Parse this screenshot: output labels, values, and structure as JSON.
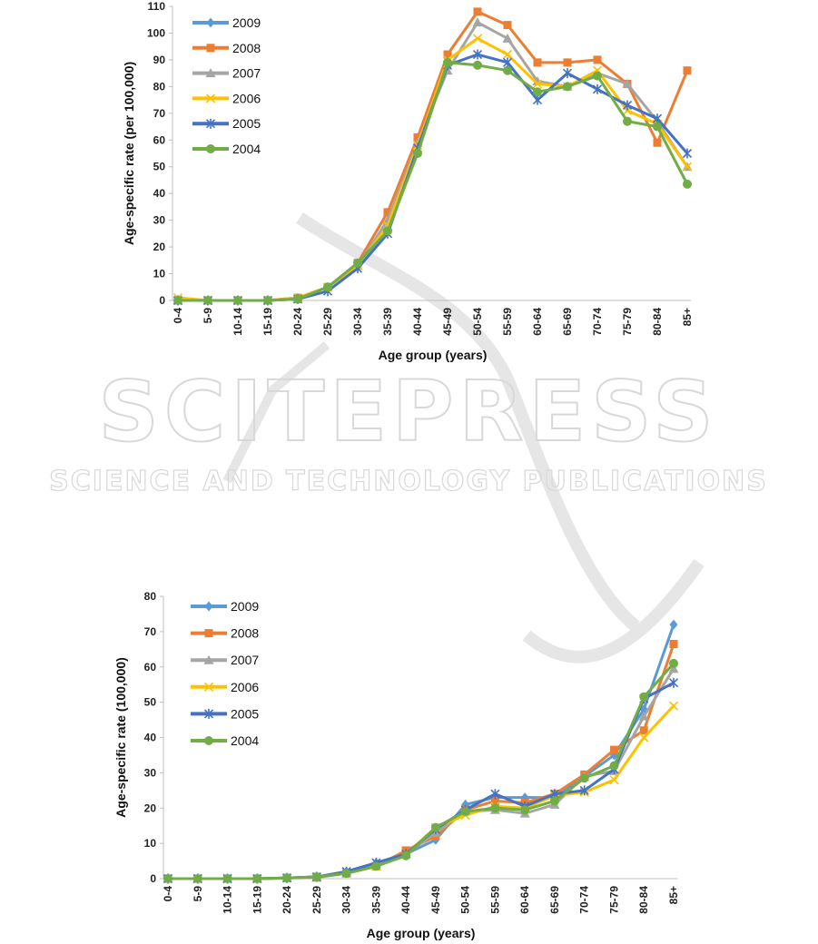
{
  "watermark": {
    "title": "SCITEPRESS",
    "subtitle": "SCIENCE AND TECHNOLOGY PUBLICATIONS"
  },
  "colors": {
    "2009": "#5b9bd5",
    "2008": "#ed7d31",
    "2007": "#a5a5a5",
    "2006": "#ffc000",
    "2005": "#4472c4",
    "2004": "#70ad47"
  },
  "chart_data": [
    {
      "type": "line",
      "title": "",
      "xlabel": "Age group (years)",
      "ylabel": "Age-specific rate (per 100,000)",
      "ylim": [
        0,
        110
      ],
      "yticks": [
        0,
        10,
        20,
        30,
        40,
        50,
        60,
        70,
        80,
        90,
        100,
        110
      ],
      "legend": "top-left",
      "categories": [
        "0-4",
        "5-9",
        "10-14",
        "15-19",
        "20-24",
        "25-29",
        "30-34",
        "35-39",
        "40-44",
        "45-49",
        "50-54",
        "55-59",
        "60-64",
        "65-69",
        "70-74",
        "75-79",
        "80-84",
        "85+"
      ],
      "series": [
        {
          "name": "2009",
          "marker": "diamond",
          "values": [
            null,
            null,
            null,
            null,
            null,
            null,
            null,
            null,
            null,
            null,
            null,
            null,
            null,
            null,
            null,
            null,
            null,
            null
          ]
        },
        {
          "name": "2008",
          "marker": "square",
          "values": [
            0,
            0,
            0,
            0,
            1,
            5,
            14,
            33,
            61,
            92,
            108,
            103,
            89,
            89,
            90,
            81,
            59,
            86
          ]
        },
        {
          "name": "2007",
          "marker": "triangle",
          "values": [
            0,
            0,
            0,
            0,
            1,
            5,
            13,
            30,
            59,
            86,
            104,
            98,
            82,
            80,
            85,
            81,
            67,
            50
          ]
        },
        {
          "name": "2006",
          "marker": "x",
          "values": [
            1,
            0,
            0,
            0,
            1,
            5,
            13,
            28,
            58,
            90,
            98,
            92,
            81,
            80,
            86,
            71,
            66,
            50
          ]
        },
        {
          "name": "2005",
          "marker": "asterisk",
          "values": [
            0,
            0,
            0,
            0,
            0.5,
            3.5,
            12,
            25,
            57,
            88,
            92,
            89,
            75,
            85,
            79,
            73,
            68,
            55
          ]
        },
        {
          "name": "2004",
          "marker": "circle",
          "values": [
            0,
            0,
            0,
            0,
            0.5,
            5,
            14,
            26,
            55,
            89,
            88,
            86,
            78,
            80,
            84,
            67,
            65,
            43.5
          ]
        }
      ]
    },
    {
      "type": "line",
      "title": "",
      "xlabel": "Age group (years)",
      "ylabel": "Age-specific rate (100,000)",
      "ylim": [
        0,
        80
      ],
      "yticks": [
        0,
        10,
        20,
        30,
        40,
        50,
        60,
        70,
        80
      ],
      "legend": "top-left",
      "categories": [
        "0-4",
        "5-9",
        "10-14",
        "15-19",
        "20-24",
        "25-29",
        "30-34",
        "35-39",
        "40-44",
        "45-49",
        "50-54",
        "55-59",
        "60-64",
        "65-69",
        "70-74",
        "75-79",
        "80-84",
        "85+"
      ],
      "series": [
        {
          "name": "2009",
          "marker": "diamond",
          "values": [
            0,
            0,
            0,
            0,
            0.2,
            0.5,
            2,
            4.5,
            7,
            11,
            21,
            23,
            23,
            23,
            29,
            35,
            48,
            72
          ]
        },
        {
          "name": "2008",
          "marker": "square",
          "values": [
            0,
            0,
            0,
            0,
            0.2,
            0.5,
            1.5,
            3.5,
            8,
            12,
            19.5,
            22,
            21.5,
            24,
            29.5,
            36.5,
            42,
            66.5
          ]
        },
        {
          "name": "2007",
          "marker": "triangle",
          "values": [
            0,
            0,
            0,
            0,
            0.2,
            0.3,
            1.5,
            3.5,
            7,
            13,
            19,
            19.5,
            18.5,
            21,
            29,
            30.5,
            46,
            59.5
          ]
        },
        {
          "name": "2006",
          "marker": "x",
          "values": [
            0,
            0,
            0,
            0,
            0.2,
            0.5,
            2,
            3.5,
            7,
            14.5,
            18,
            20.5,
            20,
            23.5,
            24.5,
            28,
            40,
            49
          ]
        },
        {
          "name": "2005",
          "marker": "asterisk",
          "values": [
            0,
            0,
            0,
            0,
            0.2,
            0.5,
            2,
            4.5,
            7,
            14,
            19.5,
            24,
            20.5,
            24,
            25,
            31,
            51,
            55.5
          ]
        },
        {
          "name": "2004",
          "marker": "circle",
          "values": [
            0,
            0,
            0,
            0,
            0.2,
            0.5,
            1.5,
            3.5,
            6.5,
            14.5,
            19,
            20,
            19.5,
            22,
            28.5,
            32,
            51.5,
            61
          ]
        }
      ]
    }
  ]
}
